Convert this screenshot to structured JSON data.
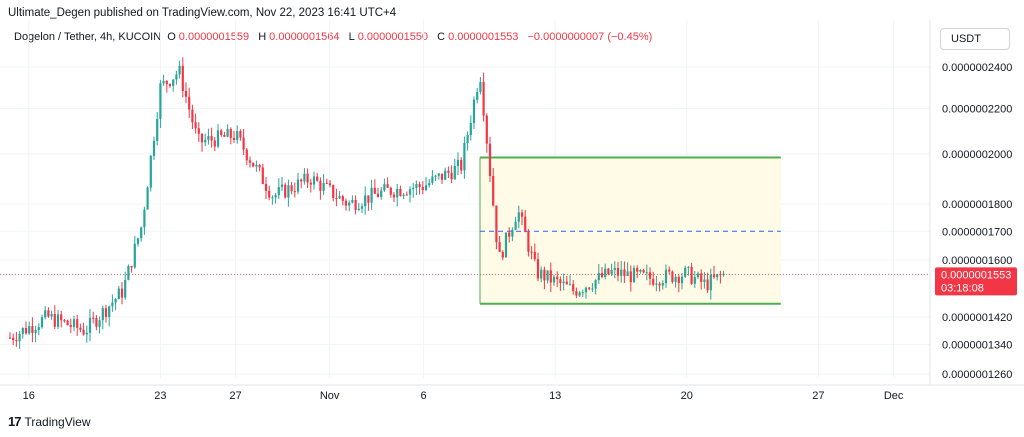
{
  "header": {
    "text": "Ultimate_Degen published on TradingView.com, Nov 22, 2023 16:41 UTC+4"
  },
  "legend": {
    "symbol": "Dogelon / Tether, 4h, KUCOIN",
    "o_label": "O",
    "o_value": "0.0000001559",
    "h_label": "H",
    "h_value": "0.0000001564",
    "l_label": "L",
    "l_value": "0.0000001550",
    "c_label": "C",
    "c_value": "0.0000001553",
    "change": "−0.0000000007 (−0.45%)"
  },
  "currency": "USDT",
  "price_label": {
    "price": "0.0000001553",
    "countdown": "03:18:08"
  },
  "footer": {
    "brand": "TradingView",
    "logo_glyph": "17"
  },
  "colors": {
    "up": "#26a69a",
    "down": "#f23645",
    "box_border": "#4caf50",
    "box_fill": "#fffbe6",
    "midline": "#2962ff"
  },
  "chart_data": {
    "type": "candlestick",
    "title": "Dogelon / Tether, 4h, KUCOIN",
    "y_scale": "log",
    "y_ticks": [
      "0.0000002400",
      "0.0000002200",
      "0.0000002000",
      "0.0000001800",
      "0.0000001700",
      "0.0000001600",
      "0.0000001420",
      "0.0000001340",
      "0.0000001260"
    ],
    "x_ticks": [
      "16",
      "23",
      "27",
      "Nov",
      "6",
      "13",
      "20",
      "27",
      "Dec"
    ],
    "current_price": 1.553e-07,
    "range_box": {
      "top": 1.985e-07,
      "bottom": 1.46e-07,
      "midline": 1.7e-07,
      "start": "Nov 9",
      "end": "Nov 25"
    },
    "price_path": [
      {
        "date": "Oct 15",
        "close": 1.36e-07
      },
      {
        "date": "Oct 17",
        "close": 1.42e-07
      },
      {
        "date": "Oct 19",
        "close": 1.38e-07
      },
      {
        "date": "Oct 21",
        "close": 1.5e-07
      },
      {
        "date": "Oct 22",
        "close": 1.72e-07
      },
      {
        "date": "Oct 23",
        "close": 2.3e-07
      },
      {
        "date": "Oct 24",
        "close": 2.38e-07
      },
      {
        "date": "Oct 25",
        "close": 2.05e-07
      },
      {
        "date": "Oct 27",
        "close": 2.08e-07
      },
      {
        "date": "Oct 29",
        "close": 1.83e-07
      },
      {
        "date": "Oct 31",
        "close": 1.9e-07
      },
      {
        "date": "Nov 2",
        "close": 1.8e-07
      },
      {
        "date": "Nov 4",
        "close": 1.85e-07
      },
      {
        "date": "Nov 6",
        "close": 1.87e-07
      },
      {
        "date": "Nov 8",
        "close": 1.95e-07
      },
      {
        "date": "Nov 9",
        "close": 2.38e-07
      },
      {
        "date": "Nov 10",
        "close": 1.6e-07
      },
      {
        "date": "Nov 11",
        "close": 1.78e-07
      },
      {
        "date": "Nov 12",
        "close": 1.56e-07
      },
      {
        "date": "Nov 14",
        "close": 1.5e-07
      },
      {
        "date": "Nov 16",
        "close": 1.56e-07
      },
      {
        "date": "Nov 18",
        "close": 1.54e-07
      },
      {
        "date": "Nov 20",
        "close": 1.555e-07
      },
      {
        "date": "Nov 21",
        "close": 1.52e-07
      },
      {
        "date": "Nov 22",
        "close": 1.553e-07
      }
    ]
  }
}
